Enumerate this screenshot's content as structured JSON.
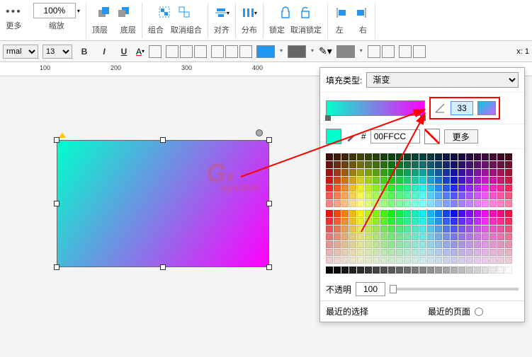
{
  "toolbar1": {
    "more_label": "更多",
    "zoom": "100%",
    "zoom_label": "缩放",
    "front_label": "顶层",
    "back_label": "底层",
    "group_label": "组合",
    "ungroup_label": "取消组合",
    "align_label": "对齐",
    "distribute_label": "分布",
    "lock_label": "锁定",
    "unlock_label": "取消锁定",
    "left_label": "左",
    "right_label": "右"
  },
  "toolbar2": {
    "style_select": "rmal",
    "fontsize": "13",
    "x_label": "x: 1"
  },
  "ruler": {
    "ticks": [
      100,
      200,
      300,
      400
    ]
  },
  "shape": {
    "gradient_from": "#00ffcc",
    "gradient_to": "#ff00ff",
    "angle": 33
  },
  "watermark": {
    "text1": "G",
    "text2": "x",
    "text3": "system"
  },
  "panel": {
    "fill_type_label": "填充类型:",
    "fill_type_value": "渐变",
    "angle_value": "33",
    "hash": "#",
    "hex_value": "00FFCC",
    "more_label": "更多",
    "opacity_label": "不透明",
    "opacity_value": "100",
    "recent_sel_label": "最近的选择",
    "recent_page_label": "最近的页面",
    "current_color": "#00ffcc",
    "grad_preview_from": "#00ccdd",
    "grad_preview_to": "#cc66ff"
  },
  "palette": {
    "main_hues": [
      "#000000",
      "#003300",
      "#006600",
      "#009900",
      "#00cc00",
      "#00ff00",
      "#330000",
      "#333300",
      "#336600",
      "#339900",
      "#33cc00",
      "#33ff00",
      "#660000",
      "#663300",
      "#666600",
      "#669900",
      "#66cc00",
      "#66ff00",
      "#990000",
      "#993300",
      "#996600",
      "#999900",
      "#99cc00",
      "#99ff00"
    ]
  }
}
